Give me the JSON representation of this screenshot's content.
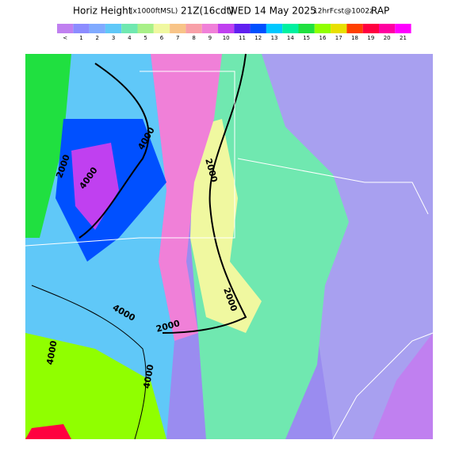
{
  "header": {
    "title_parts": [
      "Horiz Height",
      "(x1000ftMSL)",
      "21Z(16cdt)",
      "WED 14 May 2025",
      "12hrFcst@1002z",
      "RAP"
    ]
  },
  "legend": {
    "items": [
      {
        "label": "<",
        "color": "#c080f0"
      },
      {
        "label": "1",
        "color": "#8c8cff"
      },
      {
        "label": "2",
        "color": "#80aaff"
      },
      {
        "label": "3",
        "color": "#60c8f8"
      },
      {
        "label": "4",
        "color": "#70e8b0"
      },
      {
        "label": "5",
        "color": "#a8f088"
      },
      {
        "label": "6",
        "color": "#f0f8a0"
      },
      {
        "label": "7",
        "color": "#f8c488"
      },
      {
        "label": "8",
        "color": "#f8a0a8"
      },
      {
        "label": "9",
        "color": "#f080d8"
      },
      {
        "label": "10",
        "color": "#c040f0"
      },
      {
        "label": "11",
        "color": "#6020f0"
      },
      {
        "label": "12",
        "color": "#0050ff"
      },
      {
        "label": "13",
        "color": "#00c8ff"
      },
      {
        "label": "14",
        "color": "#00f0a0"
      },
      {
        "label": "15",
        "color": "#20e040"
      },
      {
        "label": "16",
        "color": "#90ff00"
      },
      {
        "label": "17",
        "color": "#e8e000"
      },
      {
        "label": "18",
        "color": "#ff4000"
      },
      {
        "label": "19",
        "color": "#ff0040"
      },
      {
        "label": "20",
        "color": "#ff00a0"
      },
      {
        "label": "21",
        "color": "#ff00ff"
      }
    ]
  },
  "contour_labels": [
    "4000",
    "2000",
    "4000",
    "2000",
    "2000",
    "2000",
    "4000",
    "4000",
    "4000"
  ]
}
